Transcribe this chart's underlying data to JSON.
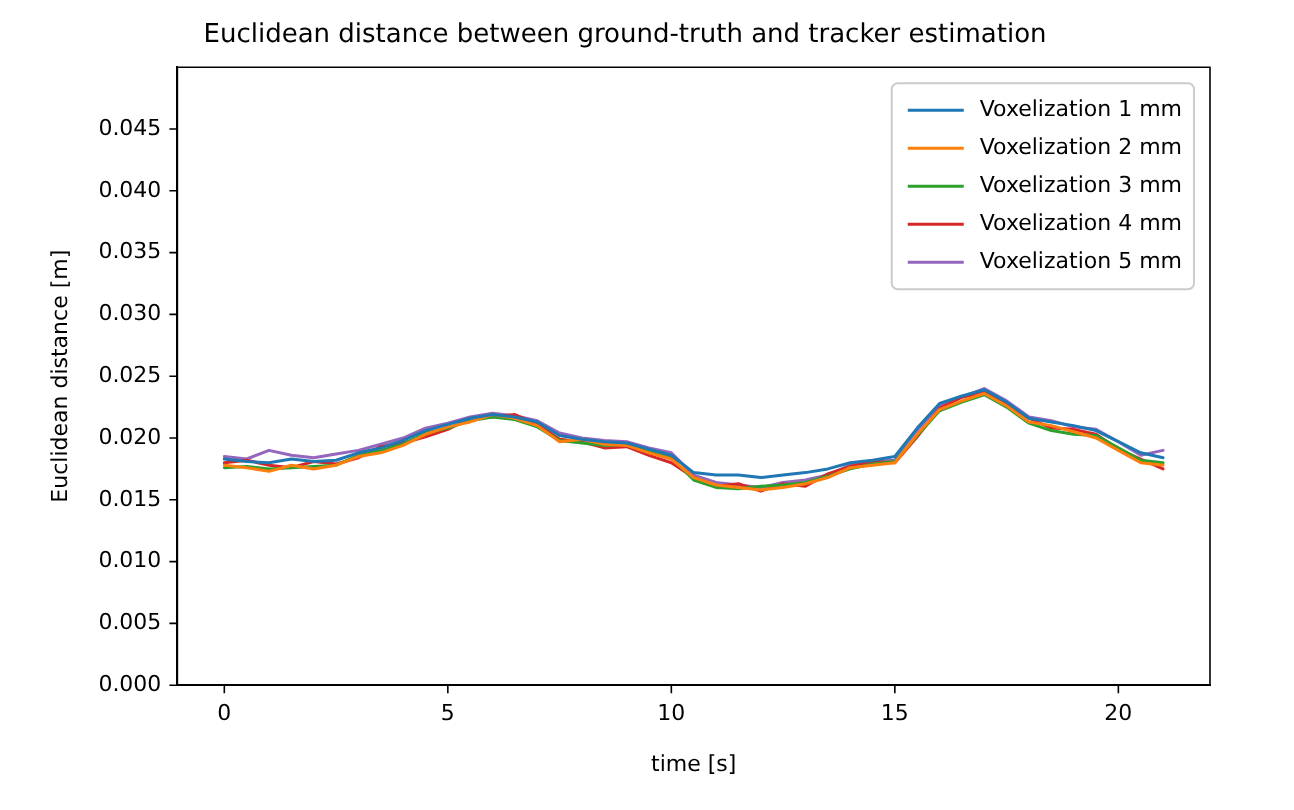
{
  "chart_data": {
    "type": "line",
    "title": "Euclidean distance between ground-truth and tracker estimation",
    "xlabel": "time [s]",
    "ylabel": "Euclidean distance [m]",
    "x": [
      0,
      0.5,
      1,
      1.5,
      2,
      2.5,
      3,
      3.5,
      4,
      4.5,
      5,
      5.5,
      6,
      6.5,
      7,
      7.5,
      8,
      8.5,
      9,
      9.5,
      10,
      10.5,
      11,
      11.5,
      12,
      12.5,
      13,
      13.5,
      14,
      14.5,
      15,
      15.5,
      16,
      16.5,
      17,
      17.5,
      18,
      18.5,
      19,
      19.5,
      20,
      20.5,
      21
    ],
    "series": [
      {
        "name": "Voxelization 1 mm",
        "color": "#1f77b4",
        "values": [
          0.0183,
          0.0181,
          0.018,
          0.0183,
          0.0181,
          0.0182,
          0.0188,
          0.0192,
          0.0198,
          0.0206,
          0.0211,
          0.0216,
          0.0219,
          0.0217,
          0.0213,
          0.0202,
          0.0199,
          0.0197,
          0.0196,
          0.0191,
          0.0186,
          0.0172,
          0.017,
          0.017,
          0.0168,
          0.017,
          0.0172,
          0.0175,
          0.018,
          0.0182,
          0.0185,
          0.0208,
          0.0228,
          0.0234,
          0.0239,
          0.0229,
          0.0216,
          0.0213,
          0.021,
          0.0206,
          0.0197,
          0.0188,
          0.0184
        ]
      },
      {
        "name": "Voxelization 2 mm",
        "color": "#ff7f0e",
        "values": [
          0.0178,
          0.0176,
          0.0173,
          0.0178,
          0.0175,
          0.0178,
          0.0185,
          0.0188,
          0.0194,
          0.0203,
          0.0209,
          0.0213,
          0.0219,
          0.0216,
          0.021,
          0.0197,
          0.0199,
          0.0195,
          0.0194,
          0.0188,
          0.0183,
          0.0168,
          0.0162,
          0.016,
          0.0158,
          0.016,
          0.0163,
          0.0168,
          0.0176,
          0.0178,
          0.018,
          0.0203,
          0.0223,
          0.023,
          0.0236,
          0.0226,
          0.0213,
          0.021,
          0.0205,
          0.02,
          0.019,
          0.018,
          0.0178
        ]
      },
      {
        "name": "Voxelization 3 mm",
        "color": "#2ca02c",
        "values": [
          0.0176,
          0.0177,
          0.0175,
          0.0176,
          0.0177,
          0.0178,
          0.0186,
          0.019,
          0.0195,
          0.0204,
          0.0208,
          0.0214,
          0.0217,
          0.0215,
          0.0209,
          0.0198,
          0.0196,
          0.0194,
          0.0195,
          0.0189,
          0.0184,
          0.0166,
          0.016,
          0.0159,
          0.0161,
          0.0162,
          0.0164,
          0.0169,
          0.0175,
          0.0179,
          0.0181,
          0.0202,
          0.0222,
          0.0229,
          0.0235,
          0.0225,
          0.0212,
          0.0206,
          0.0203,
          0.0202,
          0.0192,
          0.0182,
          0.018
        ]
      },
      {
        "name": "Voxelization 4 mm",
        "color": "#d62728",
        "values": [
          0.018,
          0.0182,
          0.0178,
          0.0176,
          0.0181,
          0.0179,
          0.0184,
          0.0193,
          0.0196,
          0.0201,
          0.0207,
          0.0216,
          0.0217,
          0.0219,
          0.0211,
          0.0199,
          0.0197,
          0.0192,
          0.0193,
          0.0186,
          0.018,
          0.0168,
          0.0161,
          0.0163,
          0.0157,
          0.0163,
          0.0161,
          0.0171,
          0.0177,
          0.0181,
          0.018,
          0.0201,
          0.0224,
          0.0233,
          0.0237,
          0.0227,
          0.0216,
          0.0208,
          0.0207,
          0.0203,
          0.0191,
          0.0183,
          0.0175
        ]
      },
      {
        "name": "Voxelization 5 mm",
        "color": "#9467bd",
        "values": [
          0.0185,
          0.0183,
          0.019,
          0.0186,
          0.0184,
          0.0187,
          0.019,
          0.0195,
          0.02,
          0.0208,
          0.0212,
          0.0217,
          0.022,
          0.0218,
          0.0214,
          0.0204,
          0.02,
          0.0198,
          0.0197,
          0.0192,
          0.0188,
          0.017,
          0.0164,
          0.0162,
          0.016,
          0.0164,
          0.0166,
          0.017,
          0.0178,
          0.0181,
          0.0182,
          0.0206,
          0.0226,
          0.0233,
          0.024,
          0.023,
          0.0217,
          0.0214,
          0.0209,
          0.0207,
          0.0197,
          0.0186,
          0.019
        ]
      }
    ],
    "xlim": [
      -1.05,
      22.05
    ],
    "xticks": [
      0,
      5,
      10,
      15,
      20
    ],
    "ylim": [
      0,
      0.05
    ],
    "yticks": [
      {
        "value": 0,
        "label": "0.000"
      },
      {
        "value": 0.005,
        "label": "0.005"
      },
      {
        "value": 0.01,
        "label": "0.010"
      },
      {
        "value": 0.015,
        "label": "0.015"
      },
      {
        "value": 0.02,
        "label": "0.020"
      },
      {
        "value": 0.025,
        "label": "0.025"
      },
      {
        "value": 0.03,
        "label": "0.030"
      },
      {
        "value": 0.035,
        "label": "0.035"
      },
      {
        "value": 0.04,
        "label": "0.040"
      },
      {
        "value": 0.045,
        "label": "0.045"
      }
    ],
    "grid": false,
    "legend": "top right",
    "marker": "none",
    "line_style": "solid"
  }
}
